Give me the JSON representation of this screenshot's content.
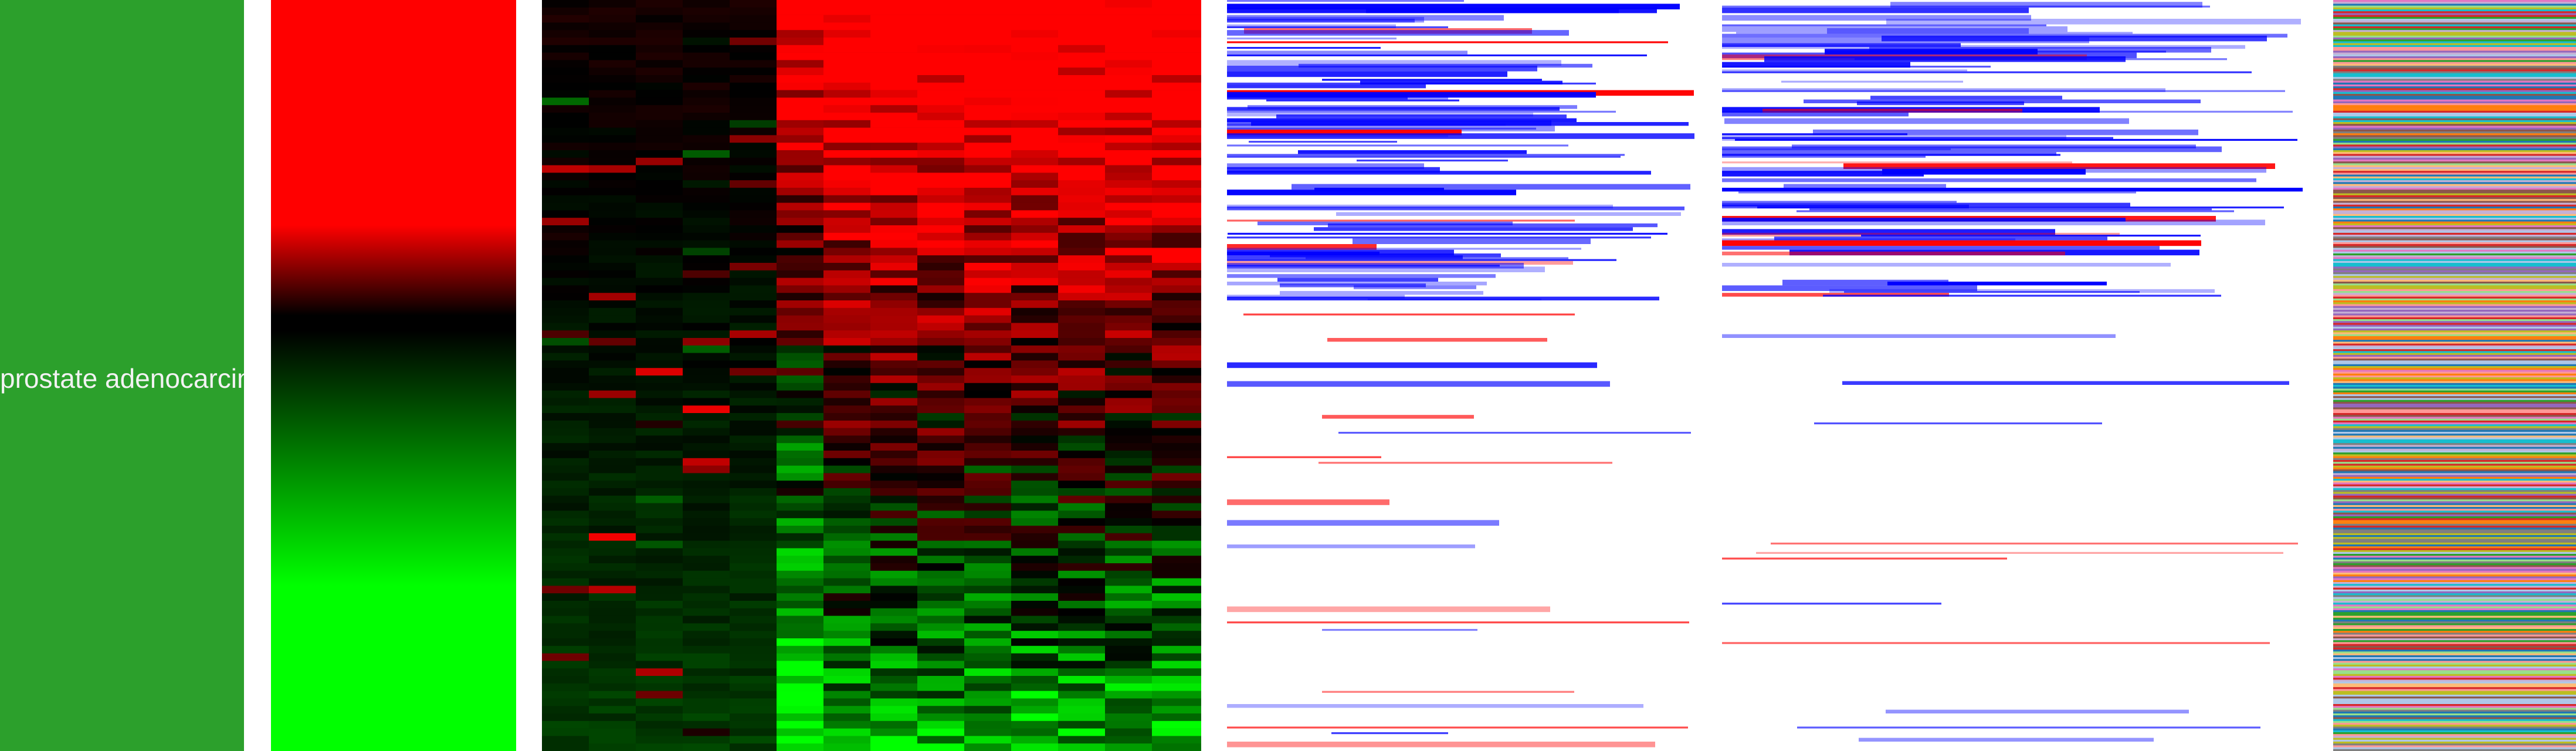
{
  "cancer_type_label": "prostate adenocarcinoma",
  "chart_data": {
    "type": "heatmap",
    "title": "",
    "rows": 400,
    "panels": [
      {
        "id": "cancer-type",
        "kind": "annotation",
        "color": "#2ca02c",
        "label": "prostate adenocarcinoma"
      },
      {
        "id": "expression-gradient",
        "kind": "colorbar",
        "stops": [
          {
            "value": 0.0,
            "color": "#ff0000"
          },
          {
            "value": 0.3,
            "color": "#ff0000"
          },
          {
            "value": 0.42,
            "color": "#000000"
          },
          {
            "value": 0.44,
            "color": "#000000"
          },
          {
            "value": 0.78,
            "color": "#00ff00"
          },
          {
            "value": 1.0,
            "color": "#00ff00"
          }
        ]
      },
      {
        "id": "expression-heatmap",
        "kind": "heatmap",
        "columns": 14,
        "low_color": "#00ff00",
        "mid_color": "#000000",
        "high_color": "#ff0000"
      },
      {
        "id": "copy-number-a",
        "kind": "sparse-lines",
        "gain_color": "#0000ff",
        "loss_color": "#ff0000"
      },
      {
        "id": "copy-number-b",
        "kind": "sparse-lines",
        "gain_color": "#0000ff",
        "loss_color": "#ff0000"
      },
      {
        "id": "sample-colors",
        "kind": "categorical-stripes",
        "palette": [
          "#1f77b4",
          "#ff7f0e",
          "#2ca02c",
          "#d62728",
          "#9467bd",
          "#8c564b",
          "#e377c2",
          "#7f7f7f",
          "#bcbd22",
          "#17becf",
          "#aec7e8",
          "#ffbb78",
          "#98df8a",
          "#ff9896",
          "#c5b0d5"
        ]
      }
    ]
  }
}
